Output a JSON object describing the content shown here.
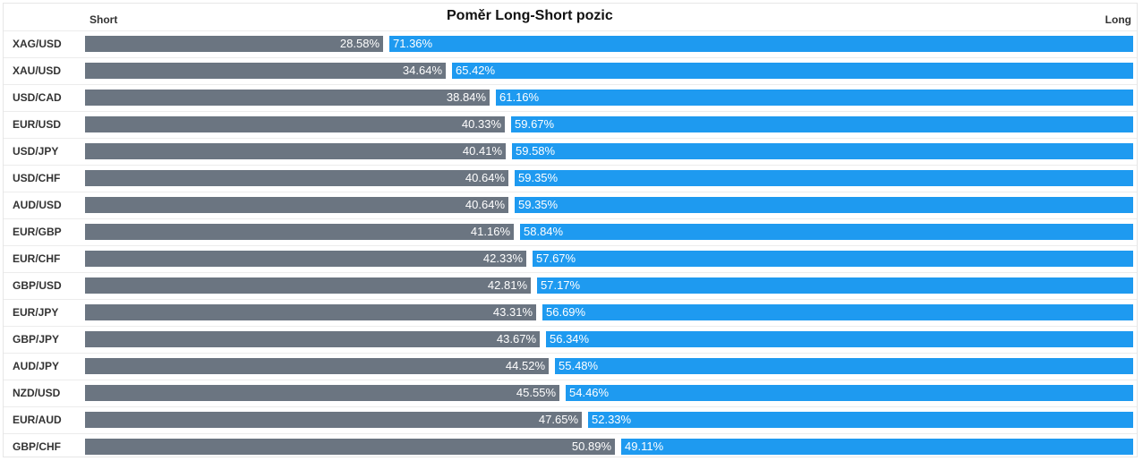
{
  "chart_data": {
    "type": "bar",
    "title": "Poměr Long-Short pozic",
    "left_label": "Short",
    "right_label": "Long",
    "colors": {
      "short": "#6b7581",
      "long": "#1e9af0"
    },
    "rows": [
      {
        "symbol": "XAG/USD",
        "short": 28.58,
        "long": 71.36,
        "short_label": "28.58%",
        "long_label": "71.36%"
      },
      {
        "symbol": "XAU/USD",
        "short": 34.64,
        "long": 65.42,
        "short_label": "34.64%",
        "long_label": "65.42%"
      },
      {
        "symbol": "USD/CAD",
        "short": 38.84,
        "long": 61.16,
        "short_label": "38.84%",
        "long_label": "61.16%"
      },
      {
        "symbol": "EUR/USD",
        "short": 40.33,
        "long": 59.67,
        "short_label": "40.33%",
        "long_label": "59.67%"
      },
      {
        "symbol": "USD/JPY",
        "short": 40.41,
        "long": 59.58,
        "short_label": "40.41%",
        "long_label": "59.58%"
      },
      {
        "symbol": "USD/CHF",
        "short": 40.64,
        "long": 59.35,
        "short_label": "40.64%",
        "long_label": "59.35%"
      },
      {
        "symbol": "AUD/USD",
        "short": 40.64,
        "long": 59.35,
        "short_label": "40.64%",
        "long_label": "59.35%"
      },
      {
        "symbol": "EUR/GBP",
        "short": 41.16,
        "long": 58.84,
        "short_label": "41.16%",
        "long_label": "58.84%"
      },
      {
        "symbol": "EUR/CHF",
        "short": 42.33,
        "long": 57.67,
        "short_label": "42.33%",
        "long_label": "57.67%"
      },
      {
        "symbol": "GBP/USD",
        "short": 42.81,
        "long": 57.17,
        "short_label": "42.81%",
        "long_label": "57.17%"
      },
      {
        "symbol": "EUR/JPY",
        "short": 43.31,
        "long": 56.69,
        "short_label": "43.31%",
        "long_label": "56.69%"
      },
      {
        "symbol": "GBP/JPY",
        "short": 43.67,
        "long": 56.34,
        "short_label": "43.67%",
        "long_label": "56.34%"
      },
      {
        "symbol": "AUD/JPY",
        "short": 44.52,
        "long": 55.48,
        "short_label": "44.52%",
        "long_label": "55.48%"
      },
      {
        "symbol": "NZD/USD",
        "short": 45.55,
        "long": 54.46,
        "short_label": "45.55%",
        "long_label": "54.46%"
      },
      {
        "symbol": "EUR/AUD",
        "short": 47.65,
        "long": 52.33,
        "short_label": "47.65%",
        "long_label": "52.33%"
      },
      {
        "symbol": "GBP/CHF",
        "short": 50.89,
        "long": 49.11,
        "short_label": "50.89%",
        "long_label": "49.11%"
      }
    ]
  }
}
